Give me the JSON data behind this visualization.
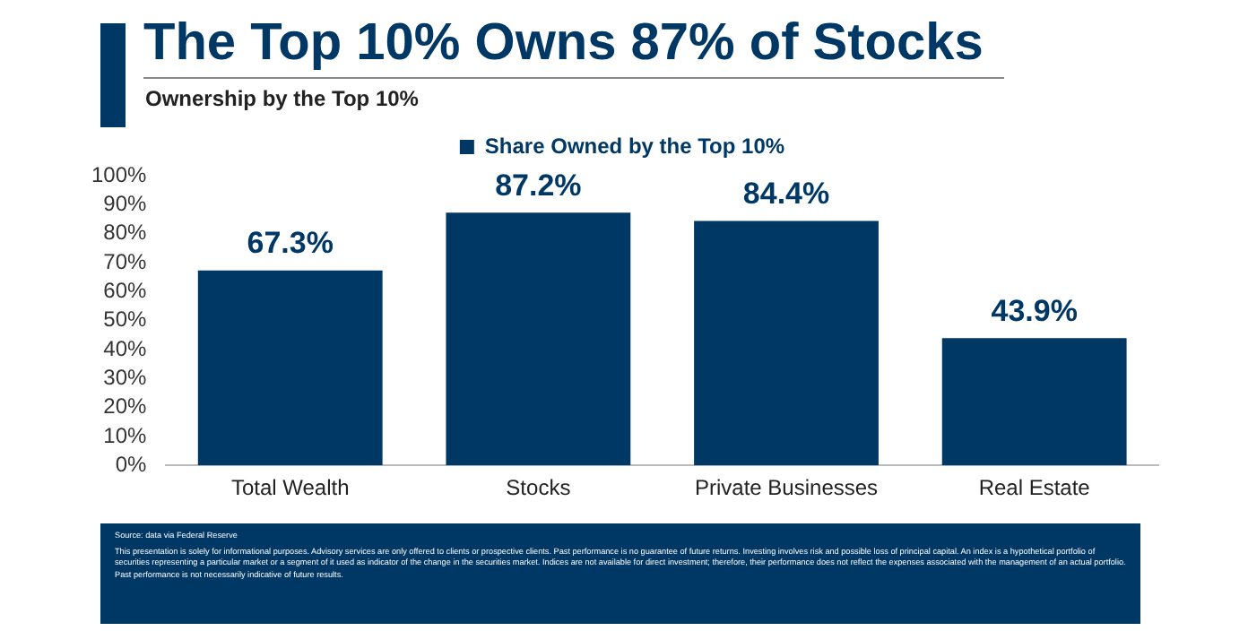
{
  "chart_data": {
    "type": "bar",
    "title": "The Top 10% Owns 87% of Stocks",
    "subtitle": "Ownership by the Top 10%",
    "categories": [
      "Total Wealth",
      "Stocks",
      "Private Businesses",
      "Real Estate"
    ],
    "series": [
      {
        "name": "Share Owned by the Top 10%",
        "color": "#003865",
        "values": [
          67.3,
          87.2,
          84.4,
          43.9
        ],
        "value_labels": [
          "67.3%",
          "87.2%",
          "84.4%",
          "43.9%"
        ]
      }
    ],
    "ylim": [
      0,
      100
    ],
    "yticks": [
      {
        "value": 0,
        "label": "0%"
      },
      {
        "value": 10,
        "label": "10%"
      },
      {
        "value": 20,
        "label": "20%"
      },
      {
        "value": 30,
        "label": "30%"
      },
      {
        "value": 40,
        "label": "40%"
      },
      {
        "value": 50,
        "label": "50%"
      },
      {
        "value": 60,
        "label": "60%"
      },
      {
        "value": 70,
        "label": "70%"
      },
      {
        "value": 80,
        "label": "80%"
      },
      {
        "value": 90,
        "label": "90%"
      },
      {
        "value": 100,
        "label": "100%"
      }
    ],
    "grid": false,
    "legend": "top",
    "annotations": [
      "Source: data via Federal Reserve",
      "This presentation is solely for informational purposes. Advisory services are only offered to clients or prospective clients. Past performance is no guarantee of future returns. Investing involves risk and possible loss of principal capital. An index is a hypothetical portfolio of securities representing a particular market or a segment of it used as indicator of the change in the securities market. Indices are not available for direct investment; therefore, their performance does not reflect the expenses associated with the management of an actual portfolio. Past performance is not necessarily indicative of future results."
    ]
  }
}
